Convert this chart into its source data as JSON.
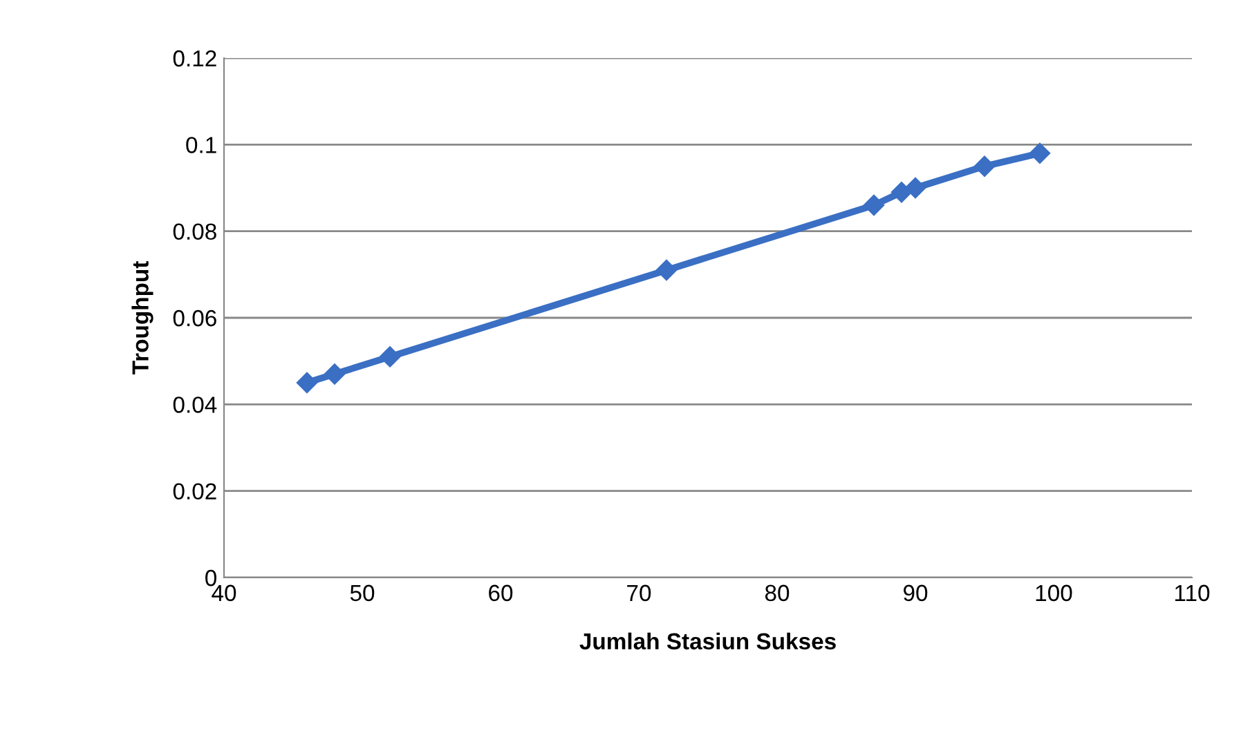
{
  "chart_data": {
    "type": "line",
    "xlabel": "Jumlah Stasiun Sukses",
    "ylabel": "Troughput",
    "x": [
      46,
      48,
      52,
      72,
      87,
      89,
      90,
      95,
      99
    ],
    "series": [
      {
        "color": "#3a6fc4",
        "values": [
          0.045,
          0.047,
          0.051,
          0.071,
          0.086,
          0.089,
          0.09,
          0.095,
          0.098
        ]
      }
    ],
    "xlim": [
      40,
      110
    ],
    "xticks": [
      40,
      50,
      60,
      70,
      80,
      90,
      100,
      110
    ],
    "ylim": [
      0,
      0.12
    ],
    "yticks": [
      0,
      0.02,
      0.04,
      0.06,
      0.08,
      0.1,
      0.12
    ],
    "grid": "y",
    "marker": "diamond",
    "line_style": "solid",
    "legend": false
  }
}
